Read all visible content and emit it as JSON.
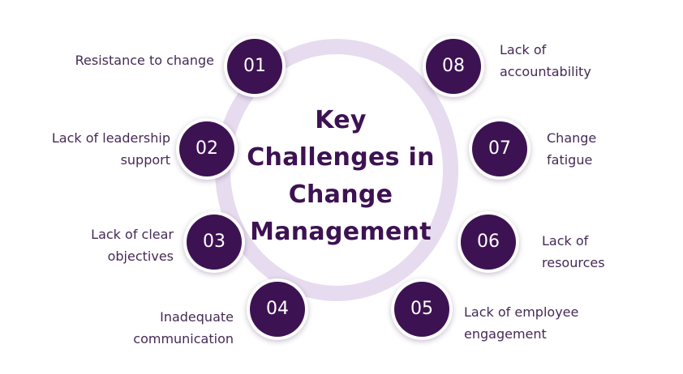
{
  "title": "Key\nChallenges in\nChange\nManagement",
  "colors": {
    "node": "#3d1252",
    "ring": "#e7dcef",
    "title": "#3d1252",
    "label": "#452a55"
  },
  "challenges": [
    {
      "number": "01",
      "label": "Resistance to change"
    },
    {
      "number": "02",
      "label": "Lack of leadership\nsupport"
    },
    {
      "number": "03",
      "label": "Lack of clear\nobjectives"
    },
    {
      "number": "04",
      "label": "Inadequate\ncommunication"
    },
    {
      "number": "05",
      "label": "Lack of employee\nengagement"
    },
    {
      "number": "06",
      "label": "Lack of\nresources"
    },
    {
      "number": "07",
      "label": "Change\nfatigue"
    },
    {
      "number": "08",
      "label": "Lack of\naccountability"
    }
  ]
}
